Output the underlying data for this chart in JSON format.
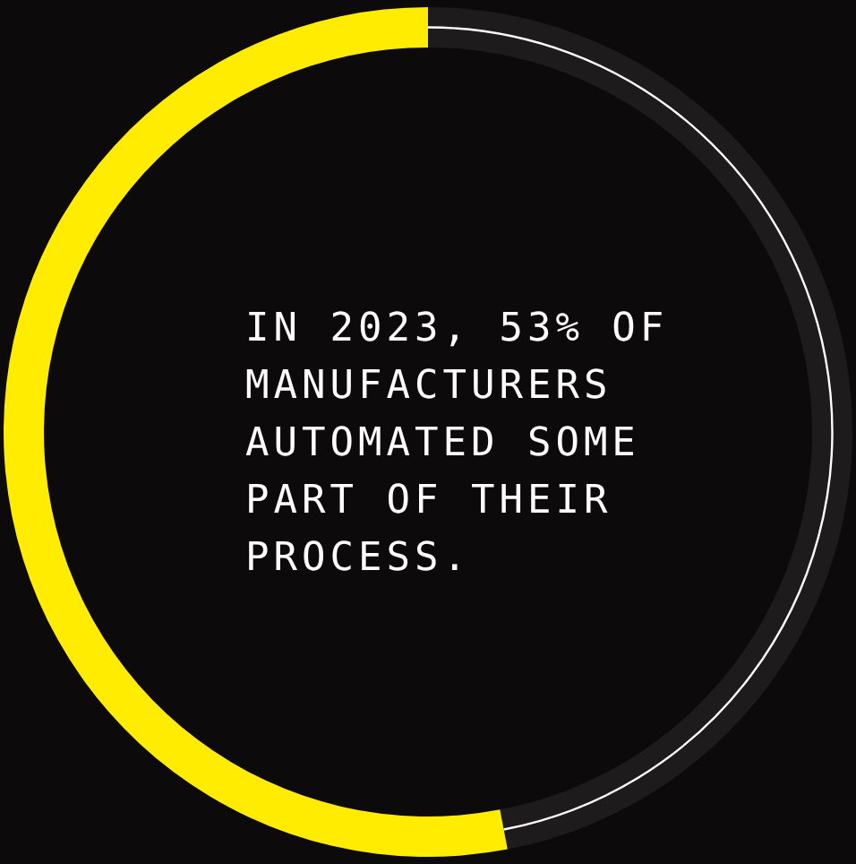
{
  "chart_data": {
    "type": "donut",
    "categories": [
      null,
      null
    ],
    "values": [
      53,
      47
    ],
    "colors": [
      "#ffec00",
      "#ffffff"
    ],
    "legend": false,
    "annotations": [
      "IN 2023, 53% OF MANUFACTURERS AUTOMATED SOME PART OF THEIR PROCESS."
    ]
  }
}
